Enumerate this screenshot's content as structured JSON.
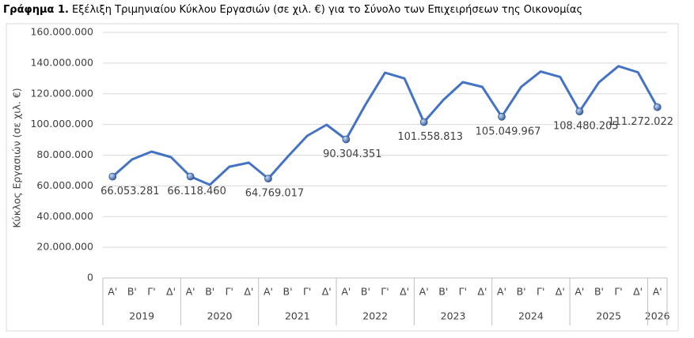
{
  "chart_data": {
    "type": "line",
    "title_prefix": "Γράφημα 1.",
    "title": "Εξέλιξη Τριμηνιαίου Κύκλου Εργασιών (σε χιλ. €) για το Σύνολο των Επιχειρήσεων της Οικονομίας",
    "y_label": "Κύκλος Εργασιών (σε χιλ. €)",
    "categories": [
      "Α'",
      "Β'",
      "Γ'",
      "Δ'",
      "Α'",
      "Β'",
      "Γ'",
      "Δ'",
      "Α'",
      "Β'",
      "Γ'",
      "Δ'",
      "Α'",
      "Β'",
      "Γ'",
      "Δ'",
      "Α'",
      "Β'",
      "Γ'",
      "Δ'",
      "Α'",
      "Β'",
      "Γ'",
      "Δ'",
      "Α'",
      "Β'",
      "Γ'",
      "Δ'",
      "Α'"
    ],
    "years": [
      "2019",
      "2020",
      "2021",
      "2022",
      "2023",
      "2024",
      "2025",
      "2026"
    ],
    "values": [
      66053281,
      77200000,
      82300000,
      78700000,
      66118460,
      60700000,
      72500000,
      75100000,
      64769017,
      79000000,
      92600000,
      99800000,
      90304351,
      113000000,
      133700000,
      130000000,
      101558813,
      116000000,
      127600000,
      124500000,
      105049967,
      124500000,
      134500000,
      131000000,
      108480205,
      127500000,
      138000000,
      134000000,
      111272022
    ],
    "value_labels": [
      "66.053.281",
      null,
      null,
      null,
      "66.118.460",
      null,
      null,
      null,
      "64.769.017",
      null,
      null,
      null,
      "90.304.351",
      null,
      null,
      null,
      "101.558.813",
      null,
      null,
      null,
      "105.049.967",
      null,
      null,
      null,
      "108.480.205",
      null,
      null,
      null,
      "111.272.022"
    ],
    "color": "#4472c4",
    "ylim": [
      0,
      160000000
    ],
    "yticks": [
      0,
      {
        "value": 20000000,
        "label": "20.000.000"
      },
      {
        "value": 40000000,
        "label": "40.000.000"
      },
      {
        "value": 60000000,
        "label": "60.000.000"
      },
      {
        "value": 80000000,
        "label": "80.000.000"
      },
      {
        "value": 100000000,
        "label": "100.000.000"
      },
      {
        "value": 120000000,
        "label": "120.000.000"
      },
      {
        "value": 140000000,
        "label": "140.000.000"
      },
      {
        "value": 160000000,
        "label": "160.000.000"
      }
    ],
    "grid": true
  }
}
